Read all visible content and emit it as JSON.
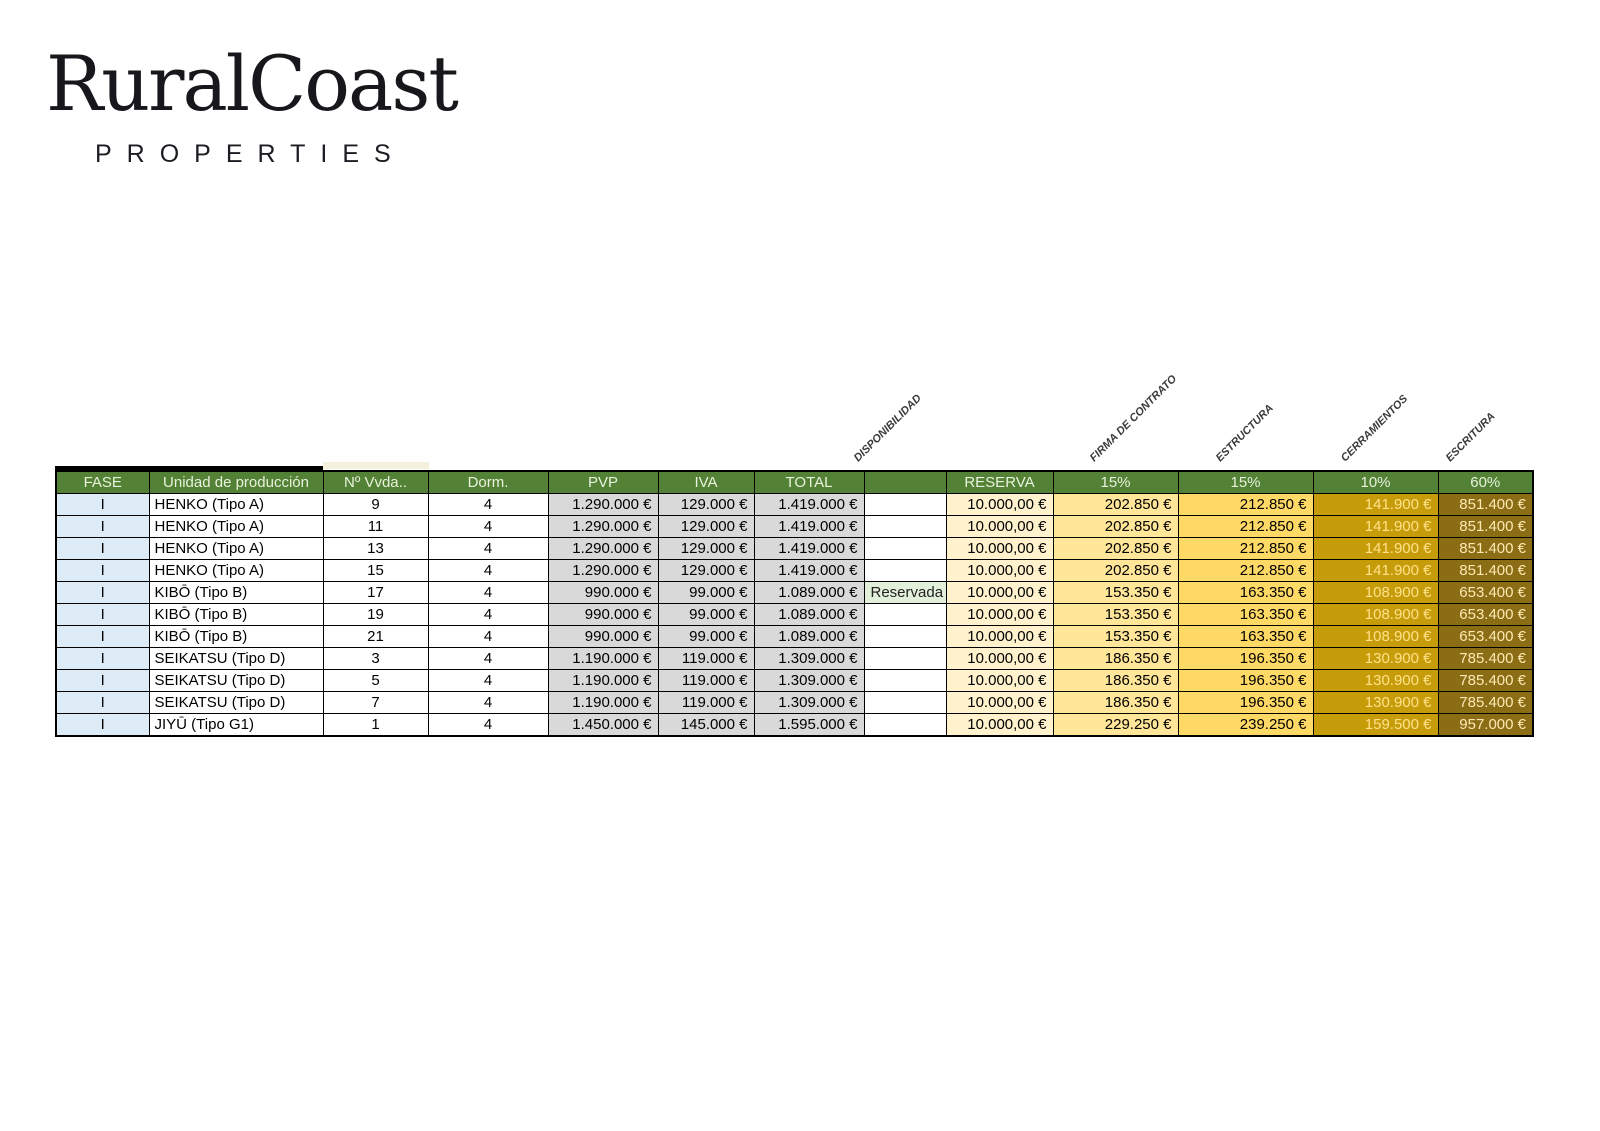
{
  "logo": {
    "brand": "RuralCoast",
    "tagline": "PROPERTIES"
  },
  "table": {
    "header_labels": [
      "FASE",
      "Unidad de producción",
      "Nº Vvda..",
      "Dorm.",
      "PVP",
      "IVA",
      "TOTAL",
      "",
      "RESERVA",
      "15%",
      "15%",
      "10%",
      "60%"
    ],
    "rotated_headers": [
      "DISPONIBILIDAD",
      "FIRMA DE CONTRATO",
      "ESTRUCTURA",
      "CERRAMIENTOS",
      "ESCRITURA"
    ],
    "rows": [
      {
        "cells": [
          "I",
          "HENKO (Tipo A)",
          "9",
          "4",
          "1.290.000 €",
          "129.000 €",
          "1.419.000 €",
          "",
          "10.000,00 €",
          "202.850 €",
          "212.850 €",
          "141.900 €",
          "851.400 €"
        ]
      },
      {
        "cells": [
          "I",
          "HENKO (Tipo A)",
          "11",
          "4",
          "1.290.000 €",
          "129.000 €",
          "1.419.000 €",
          "",
          "10.000,00 €",
          "202.850 €",
          "212.850 €",
          "141.900 €",
          "851.400 €"
        ]
      },
      {
        "cells": [
          "I",
          "HENKO (Tipo A)",
          "13",
          "4",
          "1.290.000 €",
          "129.000 €",
          "1.419.000 €",
          "",
          "10.000,00 €",
          "202.850 €",
          "212.850 €",
          "141.900 €",
          "851.400 €"
        ]
      },
      {
        "cells": [
          "I",
          "HENKO (Tipo A)",
          "15",
          "4",
          "1.290.000 €",
          "129.000 €",
          "1.419.000 €",
          "",
          "10.000,00 €",
          "202.850 €",
          "212.850 €",
          "141.900 €",
          "851.400 €"
        ]
      },
      {
        "cells": [
          "I",
          "KIBŌ (Tipo B)",
          "17",
          "4",
          "990.000 €",
          "99.000 €",
          "1.089.000 €",
          "Reservada",
          "10.000,00 €",
          "153.350 €",
          "163.350 €",
          "108.900 €",
          "653.400 €"
        ]
      },
      {
        "cells": [
          "I",
          "KIBŌ (Tipo B)",
          "19",
          "4",
          "990.000 €",
          "99.000 €",
          "1.089.000 €",
          "",
          "10.000,00 €",
          "153.350 €",
          "163.350 €",
          "108.900 €",
          "653.400 €"
        ]
      },
      {
        "cells": [
          "I",
          "KIBŌ (Tipo B)",
          "21",
          "4",
          "990.000 €",
          "99.000 €",
          "1.089.000 €",
          "",
          "10.000,00 €",
          "153.350 €",
          "163.350 €",
          "108.900 €",
          "653.400 €"
        ]
      },
      {
        "cells": [
          "I",
          "SEIKATSU (Tipo D)",
          "3",
          "4",
          "1.190.000 €",
          "119.000 €",
          "1.309.000 €",
          "",
          "10.000,00 €",
          "186.350 €",
          "196.350 €",
          "130.900 €",
          "785.400 €"
        ]
      },
      {
        "cells": [
          "I",
          "SEIKATSU (Tipo D)",
          "5",
          "4",
          "1.190.000 €",
          "119.000 €",
          "1.309.000 €",
          "",
          "10.000,00 €",
          "186.350 €",
          "196.350 €",
          "130.900 €",
          "785.400 €"
        ]
      },
      {
        "cells": [
          "I",
          "SEIKATSU (Tipo D)",
          "7",
          "4",
          "1.190.000 €",
          "119.000 €",
          "1.309.000 €",
          "",
          "10.000,00 €",
          "186.350 €",
          "196.350 €",
          "130.900 €",
          "785.400 €"
        ]
      },
      {
        "cells": [
          "I",
          "JIYŪ (Tipo G1)",
          "1",
          "4",
          "1.450.000 €",
          "145.000 €",
          "1.595.000 €",
          "",
          "10.000,00 €",
          "229.250 €",
          "239.250 €",
          "159.500 €",
          "957.000 €"
        ]
      }
    ],
    "colors": {
      "header_green": "#538135",
      "header_text": "#e9f2dd",
      "fase_blue": "#ddebf7",
      "money_gray": "#d9d9d9",
      "reserva_cream": "#fff2cc",
      "firma_yellow": "#ffe699",
      "estructura_yellow": "#ffd966",
      "cerramientos_gold": "#c79c0a",
      "cerramientos_text": "#ffe18a",
      "escritura_bronze": "#8a6d15",
      "escritura_text": "#ffe9b3",
      "reservada_green": "#e2efda"
    }
  }
}
